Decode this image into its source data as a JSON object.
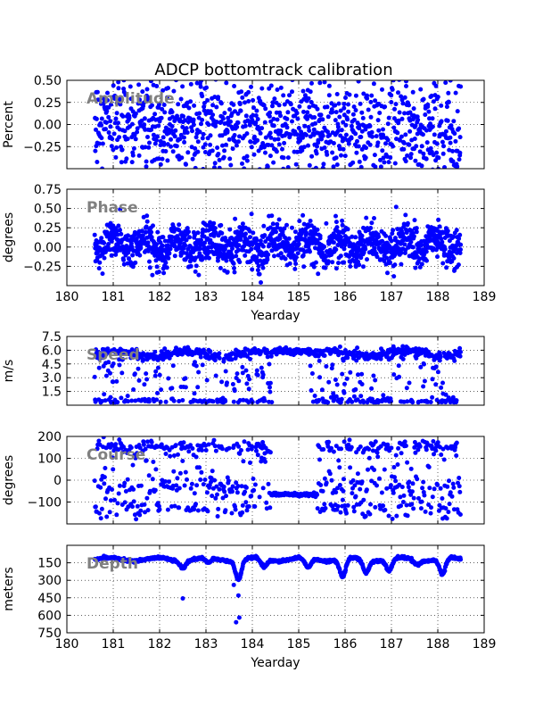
{
  "title": "ADCP bottomtrack calibration",
  "chart_data": [
    {
      "type": "scatter",
      "id": "amplitude",
      "watermark": "Amplitude",
      "ylabel": "Percent",
      "xlabel": "",
      "xlim": [
        180,
        189
      ],
      "ylim": [
        -0.5,
        0.5
      ],
      "yticks": [
        -0.25,
        0.0,
        0.25,
        0.5
      ],
      "ytick_labels": [
        "−0.25",
        "0.00",
        "0.25",
        "0.50"
      ],
      "xticks": [
        180,
        181,
        182,
        183,
        184,
        185,
        186,
        187,
        188,
        189
      ],
      "xtick_labels": [],
      "grid": true,
      "color": "#0000ff",
      "x_range": [
        180.6,
        188.5
      ],
      "y_center": 0.05,
      "y_center_end": -0.1,
      "y_spread": 0.3,
      "n_points": 1100
    },
    {
      "type": "scatter",
      "id": "phase",
      "watermark": "Phase",
      "ylabel": "degrees",
      "xlabel": "Yearday",
      "xlim": [
        180,
        189
      ],
      "ylim": [
        -0.5,
        0.75
      ],
      "yticks": [
        -0.25,
        0.0,
        0.25,
        0.5,
        0.75
      ],
      "ytick_labels": [
        "−0.25",
        "0.00",
        "0.25",
        "0.50",
        "0.75"
      ],
      "xticks": [
        180,
        181,
        182,
        183,
        184,
        185,
        186,
        187,
        188,
        189
      ],
      "xtick_labels": [
        "180",
        "181",
        "182",
        "183",
        "184",
        "185",
        "186",
        "187",
        "188",
        "189"
      ],
      "grid": true,
      "color": "#0000ff",
      "x_range": [
        180.6,
        188.5
      ],
      "y_center": 0.03,
      "y_center_end": 0.03,
      "y_spread": 0.13,
      "n_points": 1300
    },
    {
      "type": "scatter",
      "id": "speed",
      "watermark": "Speed",
      "ylabel": "m/s",
      "xlabel": "",
      "xlim": [
        180,
        189
      ],
      "ylim": [
        0,
        7.5
      ],
      "yticks": [
        1.5,
        3.0,
        4.5,
        6.0,
        7.5
      ],
      "ytick_labels": [
        "1.5",
        "3.0",
        "4.5",
        "6.0",
        "7.5"
      ],
      "xticks": [
        180,
        181,
        182,
        183,
        184,
        185,
        186,
        187,
        188,
        189
      ],
      "xtick_labels": [],
      "grid": true,
      "color": "#0000ff",
      "x_range": [
        180.6,
        188.5
      ],
      "main_level": 5.6,
      "low_level": 0.3,
      "n_points": 900
    },
    {
      "type": "scatter",
      "id": "course",
      "watermark": "Course",
      "ylabel": "degrees",
      "xlabel": "",
      "xlim": [
        180,
        189
      ],
      "ylim": [
        -200,
        200
      ],
      "yticks": [
        -100,
        0,
        100,
        200
      ],
      "ytick_labels": [
        "−100",
        "0",
        "100",
        "200"
      ],
      "xticks": [
        180,
        181,
        182,
        183,
        184,
        185,
        186,
        187,
        188,
        189
      ],
      "xtick_labels": [],
      "grid": true,
      "color": "#0000ff",
      "x_range": [
        180.6,
        188.5
      ],
      "plateau_x": [
        184.4,
        185.4
      ],
      "plateau_y": -65,
      "n_points": 700
    },
    {
      "type": "scatter",
      "id": "depth",
      "watermark": "Depth",
      "ylabel": "meters",
      "xlabel": "Yearday",
      "xlim": [
        180,
        189
      ],
      "ylim": [
        750,
        0
      ],
      "y_inverted": true,
      "yticks": [
        150,
        300,
        450,
        600,
        750
      ],
      "ytick_labels": [
        "150",
        "300",
        "450",
        "600",
        "750"
      ],
      "xticks": [
        180,
        181,
        182,
        183,
        184,
        185,
        186,
        187,
        188,
        189
      ],
      "xtick_labels": [
        "180",
        "181",
        "182",
        "183",
        "184",
        "185",
        "186",
        "187",
        "188",
        "189"
      ],
      "grid": true,
      "color": "#0000ff",
      "x_range": [
        180.6,
        188.5
      ],
      "base_depth": 120,
      "dips": [
        {
          "x": 182.5,
          "depth": 180
        },
        {
          "x": 183.05,
          "depth": 160
        },
        {
          "x": 183.7,
          "depth": 290
        },
        {
          "x": 184.25,
          "depth": 190
        },
        {
          "x": 185.2,
          "depth": 200
        },
        {
          "x": 185.95,
          "depth": 280
        },
        {
          "x": 186.45,
          "depth": 230
        },
        {
          "x": 186.95,
          "depth": 220
        },
        {
          "x": 187.55,
          "depth": 160
        },
        {
          "x": 188.1,
          "depth": 260
        }
      ],
      "outliers": [
        {
          "x": 183.65,
          "depth": 660
        },
        {
          "x": 183.72,
          "depth": 620
        },
        {
          "x": 183.7,
          "depth": 430
        },
        {
          "x": 182.5,
          "depth": 455
        },
        {
          "x": 183.6,
          "depth": 340
        }
      ],
      "n_points": 1000
    }
  ]
}
